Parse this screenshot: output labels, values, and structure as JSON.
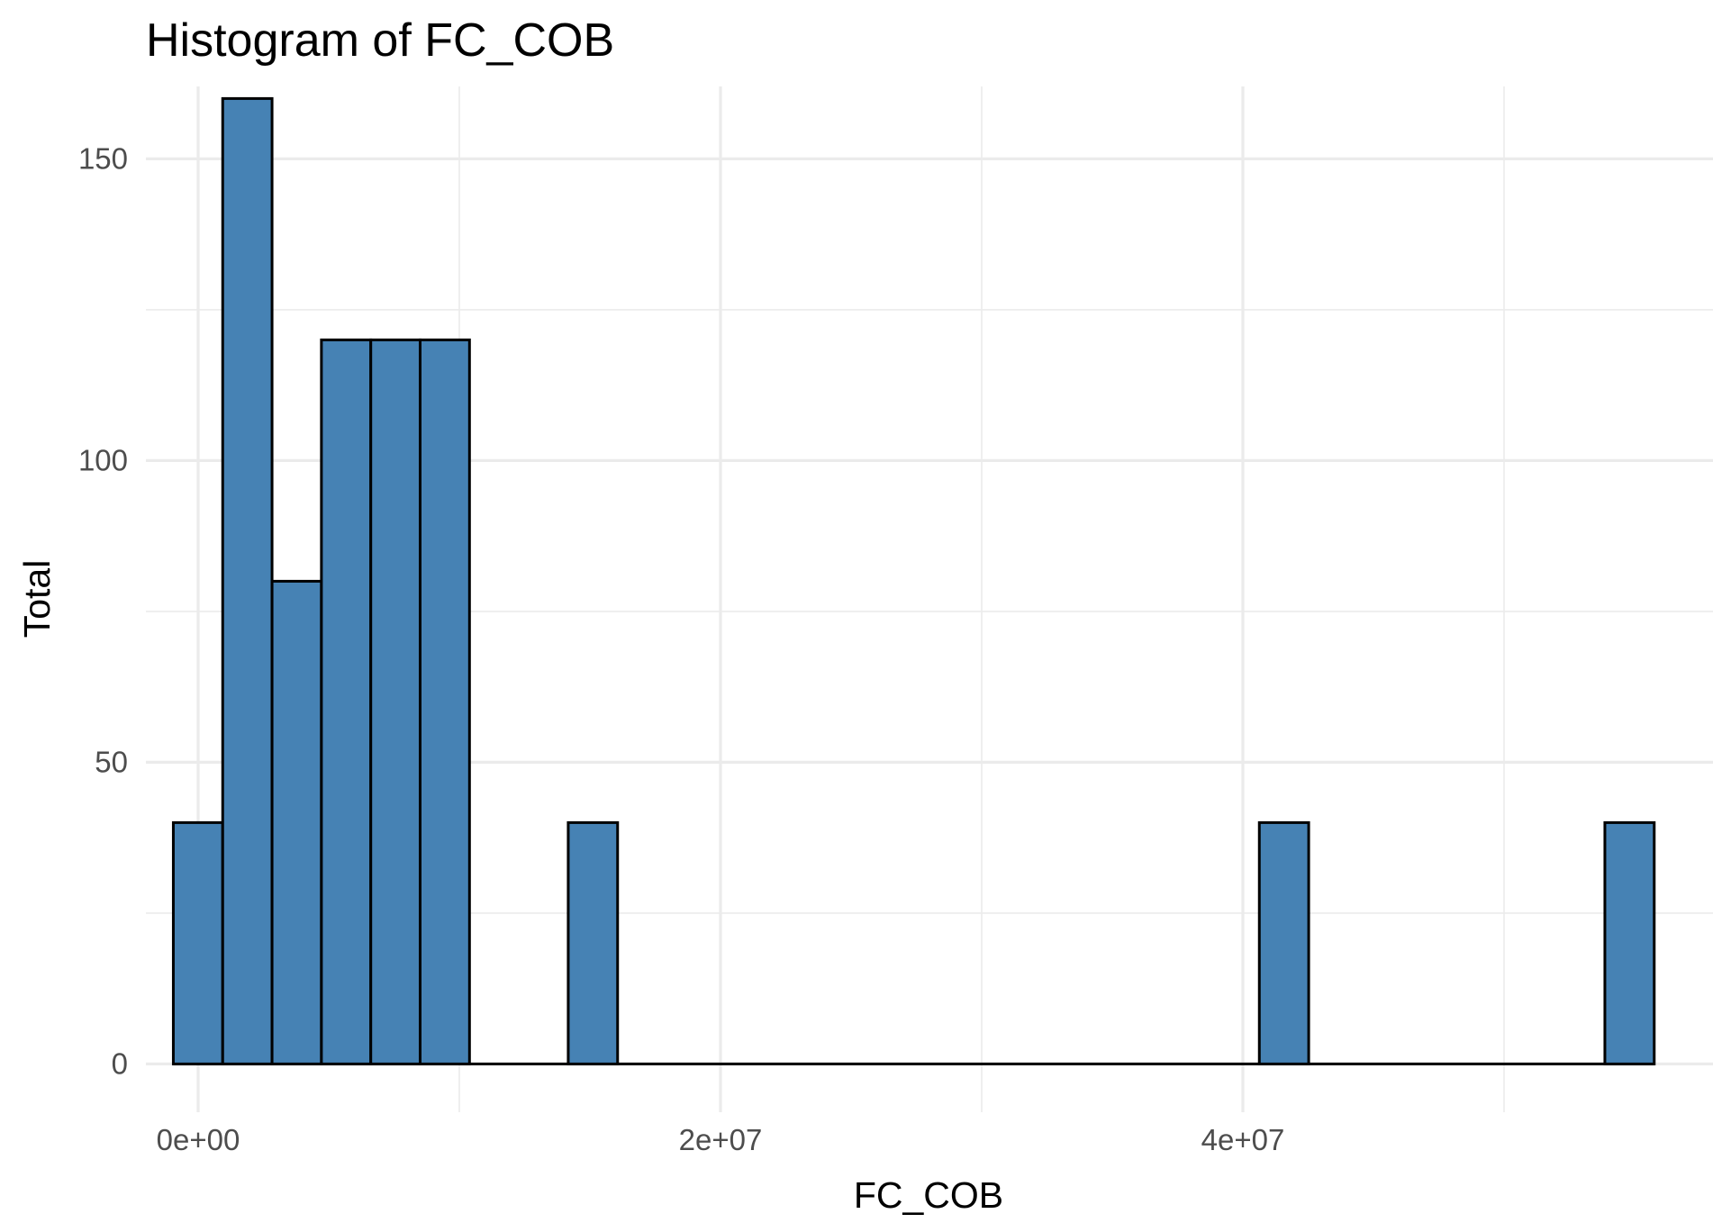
{
  "chart_data": {
    "type": "bar",
    "title": "Histogram of  FC_COB",
    "xlabel": "FC_COB",
    "ylabel": "Total",
    "xlim": [
      -2000000,
      58000000
    ],
    "ylim": [
      -8,
      162
    ],
    "x_ticks": [
      {
        "value": 0,
        "label": "0e+00"
      },
      {
        "value": 20000000,
        "label": "2e+07"
      },
      {
        "value": 40000000,
        "label": "4e+07"
      }
    ],
    "x_minor_gridlines": [
      10000000,
      30000000,
      50000000
    ],
    "y_ticks": [
      {
        "value": 0,
        "label": "0"
      },
      {
        "value": 50,
        "label": "50"
      },
      {
        "value": 100,
        "label": "100"
      },
      {
        "value": 150,
        "label": "150"
      }
    ],
    "y_minor_gridlines": [
      25,
      75,
      125
    ],
    "bin_width": 1890000,
    "bins": [
      {
        "xmin": -950000,
        "xmax": 940000,
        "count": 40
      },
      {
        "xmin": 940000,
        "xmax": 2830000,
        "count": 160
      },
      {
        "xmin": 2830000,
        "xmax": 4720000,
        "count": 80
      },
      {
        "xmin": 4720000,
        "xmax": 6610000,
        "count": 120
      },
      {
        "xmin": 6610000,
        "xmax": 8500000,
        "count": 120
      },
      {
        "xmin": 8500000,
        "xmax": 10390000,
        "count": 120
      },
      {
        "xmin": 10390000,
        "xmax": 12280000,
        "count": 0
      },
      {
        "xmin": 12280000,
        "xmax": 14170000,
        "count": 0
      },
      {
        "xmin": 14170000,
        "xmax": 16060000,
        "count": 40
      },
      {
        "xmin": 16060000,
        "xmax": 17950000,
        "count": 0
      },
      {
        "xmin": 17950000,
        "xmax": 19840000,
        "count": 0
      },
      {
        "xmin": 19840000,
        "xmax": 21730000,
        "count": 0
      },
      {
        "xmin": 21730000,
        "xmax": 23620000,
        "count": 0
      },
      {
        "xmin": 23620000,
        "xmax": 25510000,
        "count": 0
      },
      {
        "xmin": 25510000,
        "xmax": 27400000,
        "count": 0
      },
      {
        "xmin": 27400000,
        "xmax": 29290000,
        "count": 0
      },
      {
        "xmin": 29290000,
        "xmax": 31180000,
        "count": 0
      },
      {
        "xmin": 31180000,
        "xmax": 33070000,
        "count": 0
      },
      {
        "xmin": 33070000,
        "xmax": 34960000,
        "count": 0
      },
      {
        "xmin": 34960000,
        "xmax": 36850000,
        "count": 0
      },
      {
        "xmin": 36850000,
        "xmax": 38740000,
        "count": 0
      },
      {
        "xmin": 38740000,
        "xmax": 40630000,
        "count": 0
      },
      {
        "xmin": 40630000,
        "xmax": 42520000,
        "count": 40
      },
      {
        "xmin": 42520000,
        "xmax": 44410000,
        "count": 0
      },
      {
        "xmin": 44410000,
        "xmax": 46300000,
        "count": 0
      },
      {
        "xmin": 46300000,
        "xmax": 48190000,
        "count": 0
      },
      {
        "xmin": 48190000,
        "xmax": 50080000,
        "count": 0
      },
      {
        "xmin": 50080000,
        "xmax": 51970000,
        "count": 0
      },
      {
        "xmin": 51970000,
        "xmax": 53860000,
        "count": 0
      },
      {
        "xmin": 53860000,
        "xmax": 55750000,
        "count": 40
      }
    ],
    "fill_color": "#4682B4",
    "outline_color": "#000000",
    "grid": true,
    "legend": "none"
  }
}
